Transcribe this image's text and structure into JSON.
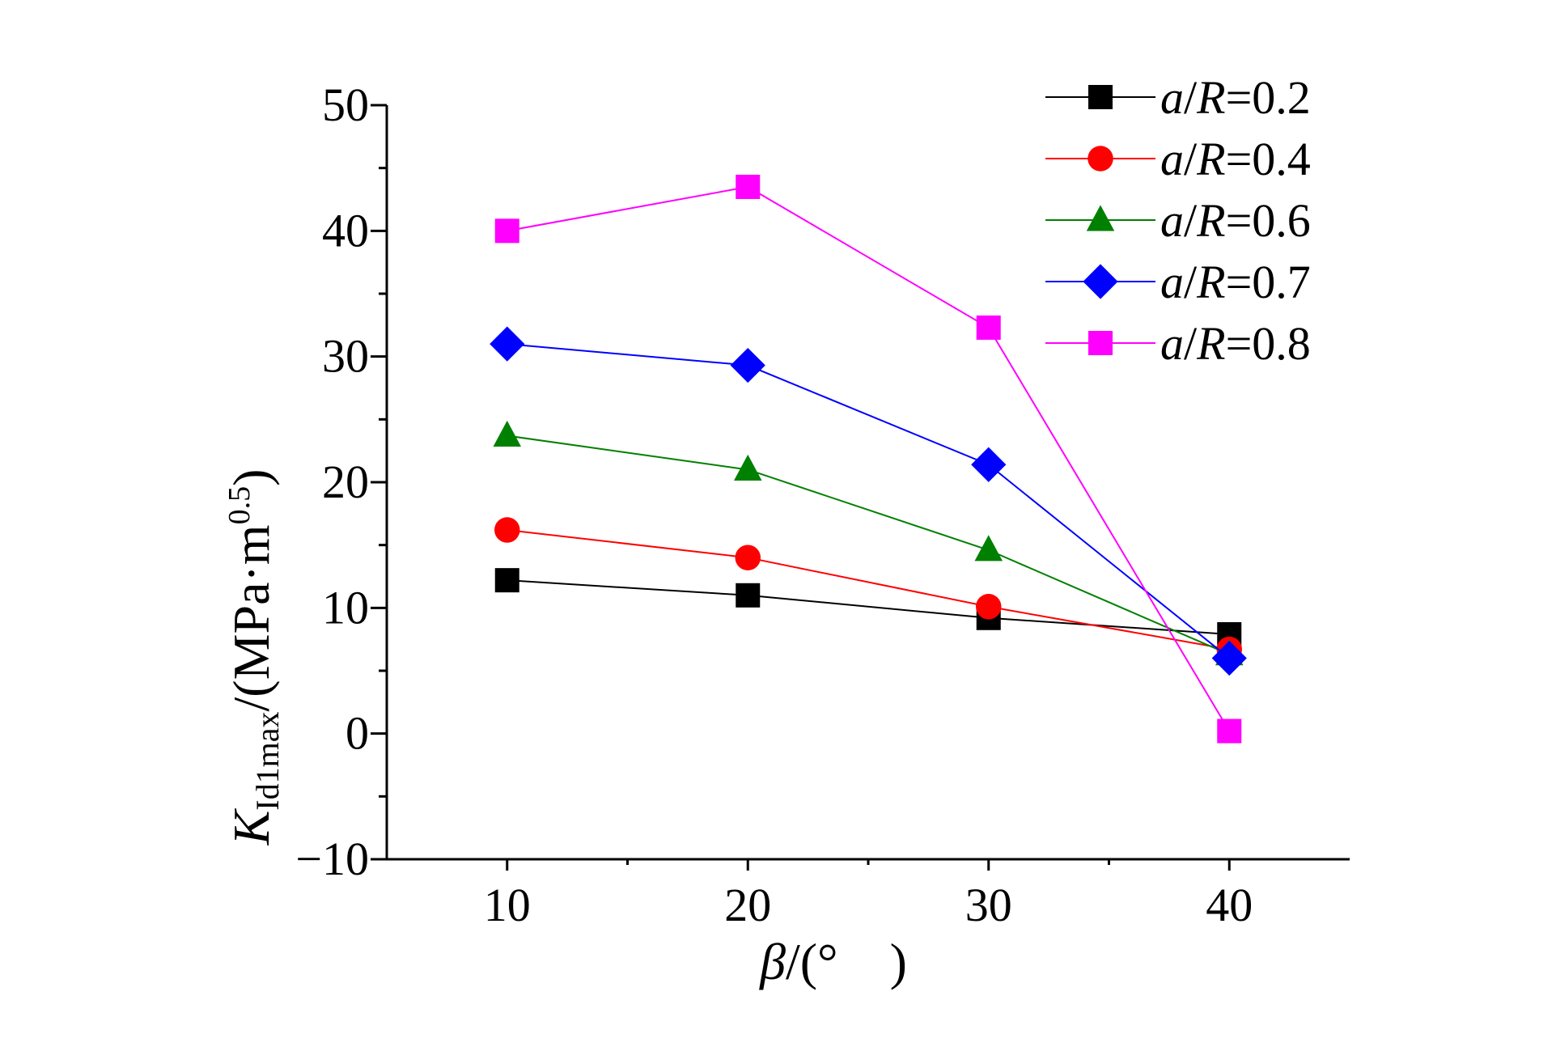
{
  "chart_data": {
    "type": "line",
    "x": [
      10,
      20,
      30,
      40
    ],
    "xlim": [
      5,
      45
    ],
    "ylim": [
      -10,
      50
    ],
    "xticks": [
      "10",
      "20",
      "30",
      "40"
    ],
    "yticks": [
      "−10",
      "0",
      "10",
      "20",
      "30",
      "40",
      "50"
    ],
    "xlabel": {
      "symbol": "β",
      "rest": "/(°　)"
    },
    "ylabel": {
      "symbol": "K",
      "subscript": "Id1max",
      "rest": "/(MPa·m",
      "superscript": "0.5",
      "close": ")"
    },
    "grid": false,
    "legend_position": "top-right",
    "series": [
      {
        "name": "a/R=0.2",
        "var": "a",
        "eq": "=0.2",
        "color": "#000000",
        "marker": "square",
        "values": [
          12.2,
          11.0,
          9.2,
          7.9
        ]
      },
      {
        "name": "a/R=0.4",
        "var": "a",
        "eq": "=0.4",
        "color": "#ff0000",
        "marker": "circle",
        "values": [
          16.2,
          14.0,
          10.1,
          6.7
        ]
      },
      {
        "name": "a/R=0.6",
        "var": "a",
        "eq": "=0.6",
        "color": "#008000",
        "marker": "triangle",
        "values": [
          23.7,
          21.0,
          14.6,
          6.3
        ]
      },
      {
        "name": "a/R=0.7",
        "var": "a",
        "eq": "=0.7",
        "color": "#0000ff",
        "marker": "diamond",
        "values": [
          31.0,
          29.3,
          21.4,
          6.0
        ]
      },
      {
        "name": "a/R=0.8",
        "var": "a",
        "eq": "=0.8",
        "color": "#ff00ff",
        "marker": "square",
        "values": [
          40.0,
          43.5,
          32.3,
          0.2
        ]
      }
    ]
  }
}
